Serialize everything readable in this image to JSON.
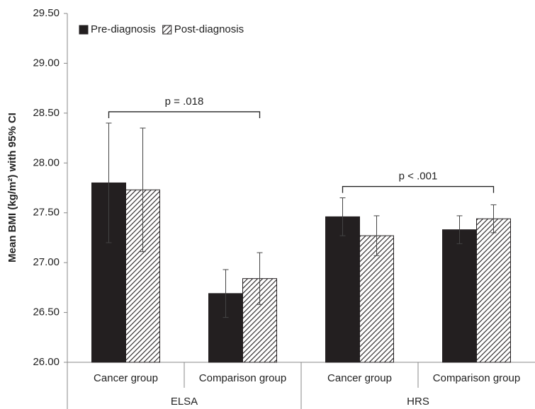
{
  "chart_data": {
    "type": "bar",
    "y_label": "Mean BMI (kg/m²) with 95% CI",
    "groups": [
      {
        "name": "ELSA",
        "categories": [
          "Cancer group",
          "Comparison group"
        ]
      },
      {
        "name": "HRS",
        "categories": [
          "Cancer group",
          "Comparison group"
        ]
      }
    ],
    "series": [
      {
        "name": "Pre-diagnosis",
        "color": "#231f20",
        "hatch": false,
        "values": [
          27.8,
          26.69,
          27.46,
          27.33
        ],
        "errors": [
          0.6,
          0.24,
          0.19,
          0.14
        ]
      },
      {
        "name": "Post-diagnosis",
        "color": "#231f20",
        "hatch": true,
        "values": [
          27.73,
          26.84,
          27.27,
          27.44
        ],
        "errors": [
          0.62,
          0.26,
          0.2,
          0.14
        ]
      }
    ],
    "annotations": [
      {
        "text": "p = .018"
      },
      {
        "text": "p < .001"
      }
    ],
    "ylim": [
      26.0,
      29.5
    ],
    "yticks": [
      {
        "value": 26.0,
        "label": "26.00"
      },
      {
        "value": 26.5,
        "label": "26.50"
      },
      {
        "value": 27.0,
        "label": "27.00"
      },
      {
        "value": 27.5,
        "label": "27.50"
      },
      {
        "value": 28.0,
        "label": "28.00"
      },
      {
        "value": 28.5,
        "label": "28.50"
      },
      {
        "value": 29.0,
        "label": "29.00"
      },
      {
        "value": 29.5,
        "label": "29.50"
      }
    ],
    "grid": false,
    "legend": "top-left"
  }
}
